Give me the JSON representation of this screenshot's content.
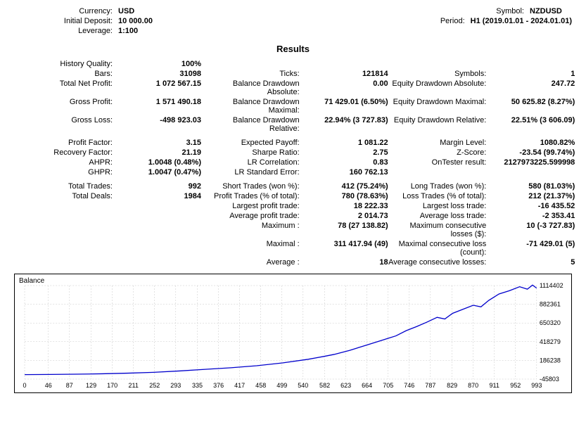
{
  "header": {
    "left": [
      {
        "label": "Currency:",
        "value": "USD"
      },
      {
        "label": "Initial Deposit:",
        "value": "10 000.00"
      },
      {
        "label": "Leverage:",
        "value": "1:100"
      }
    ],
    "right": [
      {
        "label": "Symbol:",
        "value": "NZDUSD"
      },
      {
        "label": "Period:",
        "value": "H1 (2019.01.01 - 2024.01.01)"
      }
    ]
  },
  "results_title": "Results",
  "groups": [
    [
      {
        "c1l": "History Quality:",
        "c1v": "100%",
        "c2l": "",
        "c2v": "",
        "c3l": "",
        "c3v": ""
      },
      {
        "c1l": "Bars:",
        "c1v": "31098",
        "c2l": "Ticks:",
        "c2v": "121814",
        "c3l": "Symbols:",
        "c3v": "1"
      },
      {
        "c1l": "Total Net Profit:",
        "c1v": "1 072 567.15",
        "c2l": "Balance Drawdown Absolute:",
        "c2v": "0.00",
        "c3l": "Equity Drawdown Absolute:",
        "c3v": "247.72"
      },
      {
        "c1l": "Gross Profit:",
        "c1v": "1 571 490.18",
        "c2l": "Balance Drawdown Maximal:",
        "c2v": "71 429.01 (6.50%)",
        "c3l": "Equity Drawdown Maximal:",
        "c3v": "50 625.82 (8.27%)"
      },
      {
        "c1l": "Gross Loss:",
        "c1v": "-498 923.03",
        "c2l": "Balance Drawdown Relative:",
        "c2v": "22.94% (3 727.83)",
        "c3l": "Equity Drawdown Relative:",
        "c3v": "22.51% (3 606.09)"
      }
    ],
    [
      {
        "c1l": "Profit Factor:",
        "c1v": "3.15",
        "c2l": "Expected Payoff:",
        "c2v": "1 081.22",
        "c3l": "Margin Level:",
        "c3v": "1080.82%"
      },
      {
        "c1l": "Recovery Factor:",
        "c1v": "21.19",
        "c2l": "Sharpe Ratio:",
        "c2v": "2.75",
        "c3l": "Z-Score:",
        "c3v": "-23.54 (99.74%)"
      },
      {
        "c1l": "AHPR:",
        "c1v": "1.0048 (0.48%)",
        "c2l": "LR Correlation:",
        "c2v": "0.83",
        "c3l": "OnTester result:",
        "c3v": "2127973225.599998"
      },
      {
        "c1l": "GHPR:",
        "c1v": "1.0047 (0.47%)",
        "c2l": "LR Standard Error:",
        "c2v": "160 762.13",
        "c3l": "",
        "c3v": ""
      }
    ],
    [
      {
        "c1l": "Total Trades:",
        "c1v": "992",
        "c2l": "Short Trades (won %):",
        "c2v": "412 (75.24%)",
        "c3l": "Long Trades (won %):",
        "c3v": "580 (81.03%)"
      },
      {
        "c1l": "Total Deals:",
        "c1v": "1984",
        "c2l": "Profit Trades (% of total):",
        "c2v": "780 (78.63%)",
        "c3l": "Loss Trades (% of total):",
        "c3v": "212 (21.37%)"
      },
      {
        "c1l": "",
        "c1v": "",
        "c2l": "Largest profit trade:",
        "c2v": "18 222.33",
        "c3l": "Largest loss trade:",
        "c3v": "-16 435.52"
      },
      {
        "c1l": "",
        "c1v": "",
        "c2l": "Average profit trade:",
        "c2v": "2 014.73",
        "c3l": "Average loss trade:",
        "c3v": "-2 353.41"
      },
      {
        "c1l": "",
        "c1v": "",
        "c2l": "Maximum :",
        "c2v": "78 (27 138.82)",
        "c3l": "Maximum consecutive losses ($):",
        "c3v": "10 (-3 727.83)"
      },
      {
        "c1l": "",
        "c1v": "",
        "c2l": "Maximal :",
        "c2v": "311 417.94 (49)",
        "c3l": "Maximal consecutive loss (count):",
        "c3v": "-71 429.01 (5)"
      },
      {
        "c1l": "",
        "c1v": "",
        "c2l": "Average :",
        "c2v": "18",
        "c3l": "Average consecutive losses:",
        "c3v": "5"
      }
    ]
  ],
  "chart": {
    "label": "Balance",
    "line_color": "#0000cc",
    "grid_color": "#c8c8c8",
    "background": "#ffffff",
    "x_ticks": [
      "0",
      "46",
      "87",
      "129",
      "170",
      "211",
      "252",
      "293",
      "335",
      "376",
      "417",
      "458",
      "499",
      "540",
      "582",
      "623",
      "664",
      "705",
      "746",
      "787",
      "829",
      "870",
      "911",
      "952",
      "993"
    ],
    "y_ticks": [
      "-45803",
      "186238",
      "418279",
      "650320",
      "882361",
      "1114402"
    ],
    "y_min": -45803,
    "y_max": 1114402,
    "x_min": 0,
    "x_max": 993,
    "points": [
      [
        0,
        10000
      ],
      [
        50,
        12000
      ],
      [
        100,
        15000
      ],
      [
        150,
        20000
      ],
      [
        200,
        28000
      ],
      [
        250,
        38000
      ],
      [
        300,
        55000
      ],
      [
        350,
        75000
      ],
      [
        400,
        95000
      ],
      [
        450,
        120000
      ],
      [
        500,
        155000
      ],
      [
        550,
        200000
      ],
      [
        580,
        235000
      ],
      [
        600,
        260000
      ],
      [
        630,
        310000
      ],
      [
        660,
        370000
      ],
      [
        690,
        430000
      ],
      [
        705,
        460000
      ],
      [
        720,
        490000
      ],
      [
        740,
        555000
      ],
      [
        760,
        605000
      ],
      [
        780,
        660000
      ],
      [
        800,
        720000
      ],
      [
        815,
        700000
      ],
      [
        830,
        770000
      ],
      [
        850,
        820000
      ],
      [
        870,
        870000
      ],
      [
        885,
        850000
      ],
      [
        900,
        930000
      ],
      [
        920,
        1010000
      ],
      [
        940,
        1050000
      ],
      [
        960,
        1100000
      ],
      [
        975,
        1070000
      ],
      [
        985,
        1120000
      ],
      [
        993,
        1082567
      ]
    ]
  }
}
